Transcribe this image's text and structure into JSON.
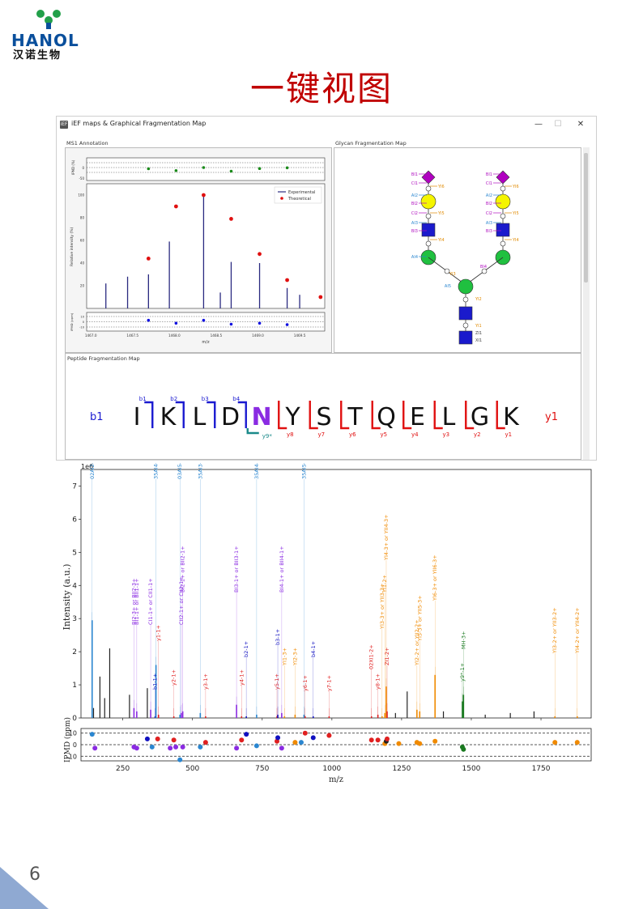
{
  "logo": {
    "text": "HANOL",
    "cn": "汉诺生物"
  },
  "page_title": "一键视图",
  "page_number": "6",
  "window": {
    "title": "iEF maps & Graphical Fragmentation Map",
    "app_icon_label": "iEF",
    "min_label": "—",
    "max_label": "☐",
    "close_label": "✕",
    "panels": {
      "ms1": "MS1 Annotation",
      "glycan": "Glycan Fragmentation Map",
      "peptide": "Peptide Fragmentation Map"
    }
  },
  "ms1_chart": {
    "type": "bar",
    "ylabel": "Relative intensity (%)",
    "top_ylabel": "IPMD (%)",
    "bottom_ylabel": "IPMD (ppm)",
    "xlabel": "m/z",
    "legend": [
      "Experimental",
      "Theoretical"
    ],
    "xlim": [
      1466.95,
      1469.8
    ],
    "xticks": [
      "1467.0",
      "1467.5",
      "1468.0",
      "1468.5",
      "1469.0",
      "1469.5"
    ],
    "yticks": [
      "20",
      "40",
      "60",
      "80",
      "100"
    ],
    "top_yticks": [
      "0",
      "-50"
    ],
    "bottom_yticks": [
      "10",
      "0",
      "-10"
    ],
    "experimental": [
      [
        1467.18,
        22
      ],
      [
        1467.44,
        28
      ],
      [
        1467.69,
        30
      ],
      [
        1467.94,
        59
      ],
      [
        1468.35,
        100
      ],
      [
        1468.55,
        14
      ],
      [
        1468.68,
        41
      ],
      [
        1469.02,
        40
      ],
      [
        1469.35,
        18
      ],
      [
        1469.5,
        12
      ]
    ],
    "theoretical": [
      [
        1467.69,
        44
      ],
      [
        1468.02,
        90
      ],
      [
        1468.35,
        100
      ],
      [
        1468.68,
        79
      ],
      [
        1469.02,
        48
      ],
      [
        1469.35,
        25
      ],
      [
        1469.75,
        10
      ]
    ],
    "ipmd_pct": [
      [
        1467.69,
        -10
      ],
      [
        1468.02,
        -25
      ],
      [
        1468.35,
        0
      ],
      [
        1468.68,
        -30
      ],
      [
        1469.02,
        -8
      ],
      [
        1469.35,
        -2
      ]
    ],
    "ipmd_ppm": [
      [
        1467.69,
        3
      ],
      [
        1468.02,
        -3
      ],
      [
        1468.35,
        3
      ],
      [
        1468.68,
        -5
      ],
      [
        1469.02,
        -3
      ],
      [
        1469.35,
        -6
      ]
    ]
  },
  "glycan": {
    "left_branch": [
      "BI1",
      "CI1",
      "AI2",
      "BI2",
      "CI2",
      "AI3",
      "BI3",
      "AI4"
    ],
    "left_y": [
      "YI6",
      "YI5",
      "YI4"
    ],
    "right_branch": [
      "BI1",
      "CI1",
      "AI2",
      "BI2",
      "CI2",
      "AI3",
      "BI3"
    ],
    "right_y": [
      "YI6",
      "YI5",
      "YI4"
    ],
    "core_labels": [
      "AI5",
      "BI4",
      "YI3",
      "YI2",
      "YI1",
      "ZI1",
      "XI1"
    ]
  },
  "peptide": {
    "sequence": [
      "I",
      "K",
      "L",
      "D",
      "N",
      "Y",
      "S",
      "T",
      "Q",
      "E",
      "L",
      "G",
      "K"
    ],
    "glyco_site_index": 4,
    "b_label": "b1",
    "y_label": "y1",
    "b_ions": [
      "b1",
      "b2",
      "b3",
      "b4"
    ],
    "y_ions": [
      "y8",
      "y7",
      "y6",
      "y5",
      "y4",
      "y3",
      "y2",
      "y1"
    ],
    "y9_label": "y9*"
  },
  "chart_data": {
    "type": "bar",
    "title": "",
    "xlabel": "m/z",
    "ylabel": "Intensity (a.u.)",
    "exponent_label": "1e6",
    "xlim": [
      100,
      1930
    ],
    "ylim": [
      0,
      7.5
    ],
    "xticks": [
      250,
      500,
      750,
      1000,
      1250,
      1500,
      1750
    ],
    "yticks": [
      0,
      1,
      2,
      3,
      4,
      5,
      6,
      7
    ],
    "ipmd": {
      "ylabel": "IPMD (ppm)",
      "yticks": [
        10,
        0,
        -10
      ],
      "ylim": [
        -14,
        14
      ]
    },
    "colors": {
      "blue": "#2a86d0",
      "purple": "#8a2be2",
      "red": "#e02020",
      "orange": "#f08a00",
      "green": "#1a7a20",
      "navy": "#1010c0",
      "black": "#222222"
    },
    "peaks": [
      {
        "x": 140,
        "y": 2.95,
        "color": "blue",
        "label": "02AI2-3+ or 02AI2-3+"
      },
      {
        "x": 145,
        "y": 0.3,
        "color": "black"
      },
      {
        "x": 168,
        "y": 1.25,
        "color": "black"
      },
      {
        "x": 185,
        "y": 0.6,
        "color": "black"
      },
      {
        "x": 203,
        "y": 2.1,
        "color": "black"
      },
      {
        "x": 274,
        "y": 0.7,
        "color": "black"
      },
      {
        "x": 290,
        "y": 0.3,
        "color": "purple",
        "label": "BI2-3+ or BII2-3+"
      },
      {
        "x": 300,
        "y": 0.2,
        "color": "purple",
        "label": "BI1-1+ or BII1-1+"
      },
      {
        "x": 338,
        "y": 0.9,
        "color": "black"
      },
      {
        "x": 350,
        "y": 0.25,
        "color": "purple",
        "label": "CI1-1+ or CII1-1+"
      },
      {
        "x": 366,
        "y": 0.05,
        "color": "navy",
        "label": "b1-1+"
      },
      {
        "x": 369,
        "y": 1.6,
        "color": "blue",
        "label": "35AI4-2+ or 35AI4-2+"
      },
      {
        "x": 378,
        "y": 0.1,
        "color": "red",
        "label": "y1-1+"
      },
      {
        "x": 433,
        "y": 0.05,
        "color": "red",
        "label": "y2-1+"
      },
      {
        "x": 455,
        "y": 0.1,
        "color": "blue",
        "label": "03AI5-2+"
      },
      {
        "x": 460,
        "y": 0.15,
        "color": "purple",
        "label": "CII2-1+ or CII2-1+"
      },
      {
        "x": 465,
        "y": 0.2,
        "color": "purple",
        "label": "BI2-1+ or BII2-1+"
      },
      {
        "x": 528,
        "y": 0.15,
        "color": "blue",
        "label": "35AI3-1+ or 35AI3-1+"
      },
      {
        "x": 547,
        "y": 0.05,
        "color": "red",
        "label": "y3-1+"
      },
      {
        "x": 658,
        "y": 0.4,
        "color": "purple",
        "label": "BI3-1+ or BII3-1+"
      },
      {
        "x": 676,
        "y": 0.05,
        "color": "red",
        "label": "y4-1+"
      },
      {
        "x": 693,
        "y": 0.05,
        "color": "navy",
        "label": "b2-1+"
      },
      {
        "x": 730,
        "y": 0.1,
        "color": "blue",
        "label": "35AI4-1+ or 35AI4-1+"
      },
      {
        "x": 803,
        "y": 0.05,
        "color": "red",
        "label": "y5-1+"
      },
      {
        "x": 806,
        "y": 0.1,
        "color": "navy",
        "label": "b3-1+"
      },
      {
        "x": 820,
        "y": 0.15,
        "color": "purple",
        "label": "BI4-1+ or BII4-1+"
      },
      {
        "x": 830,
        "y": 0.05,
        "color": "orange",
        "label": "YI1-3+"
      },
      {
        "x": 868,
        "y": 0.1,
        "color": "orange",
        "label": "YI2-3+"
      },
      {
        "x": 900,
        "y": 0.1,
        "color": "blue",
        "label": "35AI5-1+"
      },
      {
        "x": 904,
        "y": 0.05,
        "color": "red",
        "label": "y6-1+"
      },
      {
        "x": 933,
        "y": 0.05,
        "color": "navy",
        "label": "b4-1+"
      },
      {
        "x": 990,
        "y": 0.05,
        "color": "red",
        "label": "y7-1+"
      },
      {
        "x": 1142,
        "y": 0.05,
        "color": "red",
        "label": "02XI1-2+"
      },
      {
        "x": 1165,
        "y": 0.1,
        "color": "red",
        "label": "y8-1+"
      },
      {
        "x": 1180,
        "y": 0.05,
        "color": "orange",
        "label": "YI3-3+ or YII3-3+"
      },
      {
        "x": 1190,
        "y": 0.15,
        "color": "orange",
        "label": "YI1-2+"
      },
      {
        "x": 1195,
        "y": 0.95,
        "color": "orange",
        "label": "YI4-3+ or YII4-3+"
      },
      {
        "x": 1198,
        "y": 0.2,
        "color": "red",
        "label": "ZI1-2+"
      },
      {
        "x": 1228,
        "y": 0.15,
        "color": "black"
      },
      {
        "x": 1270,
        "y": 0.8,
        "color": "black"
      },
      {
        "x": 1305,
        "y": 0.25,
        "color": "orange",
        "label": "YI2-2+ or YII2-2+"
      },
      {
        "x": 1315,
        "y": 0.2,
        "color": "orange",
        "label": "YI5-3+ or YII5-3+"
      },
      {
        "x": 1370,
        "y": 1.3,
        "color": "orange",
        "label": "YI6-3+ or YII6-3+"
      },
      {
        "x": 1400,
        "y": 0.2,
        "color": "black"
      },
      {
        "x": 1468,
        "y": 0.5,
        "color": "green",
        "label": "y9*-1+"
      },
      {
        "x": 1472,
        "y": 0.7,
        "color": "green",
        "label": "MH-3+"
      },
      {
        "x": 1550,
        "y": 0.1,
        "color": "black"
      },
      {
        "x": 1640,
        "y": 0.15,
        "color": "black"
      },
      {
        "x": 1725,
        "y": 0.2,
        "color": "black"
      },
      {
        "x": 1800,
        "y": 0.05,
        "color": "orange",
        "label": "YI3-2+ or YII3-2+"
      },
      {
        "x": 1880,
        "y": 0.05,
        "color": "orange",
        "label": "YI4-2+ or YII4-2+"
      }
    ],
    "ipmd_points": [
      {
        "x": 140,
        "y": 9,
        "color": "blue"
      },
      {
        "x": 150,
        "y": -3,
        "color": "purple"
      },
      {
        "x": 290,
        "y": -2,
        "color": "purple"
      },
      {
        "x": 300,
        "y": -3,
        "color": "purple"
      },
      {
        "x": 338,
        "y": 5,
        "color": "navy"
      },
      {
        "x": 355,
        "y": -2,
        "color": "blue"
      },
      {
        "x": 375,
        "y": 5,
        "color": "red"
      },
      {
        "x": 420,
        "y": -3,
        "color": "purple"
      },
      {
        "x": 433,
        "y": 4,
        "color": "red"
      },
      {
        "x": 440,
        "y": -2,
        "color": "purple"
      },
      {
        "x": 455,
        "y": -13,
        "color": "blue"
      },
      {
        "x": 465,
        "y": -2,
        "color": "purple"
      },
      {
        "x": 528,
        "y": -2,
        "color": "blue"
      },
      {
        "x": 547,
        "y": 2,
        "color": "red"
      },
      {
        "x": 658,
        "y": -3,
        "color": "purple"
      },
      {
        "x": 676,
        "y": 4,
        "color": "red"
      },
      {
        "x": 693,
        "y": 9,
        "color": "navy"
      },
      {
        "x": 730,
        "y": -1,
        "color": "blue"
      },
      {
        "x": 803,
        "y": 3,
        "color": "red"
      },
      {
        "x": 806,
        "y": 6,
        "color": "navy"
      },
      {
        "x": 820,
        "y": -3,
        "color": "purple"
      },
      {
        "x": 868,
        "y": 2,
        "color": "orange"
      },
      {
        "x": 890,
        "y": 2,
        "color": "blue"
      },
      {
        "x": 904,
        "y": 10,
        "color": "red"
      },
      {
        "x": 933,
        "y": 6,
        "color": "navy"
      },
      {
        "x": 990,
        "y": 8,
        "color": "red"
      },
      {
        "x": 1142,
        "y": 4,
        "color": "red"
      },
      {
        "x": 1165,
        "y": 4,
        "color": "red"
      },
      {
        "x": 1190,
        "y": 1,
        "color": "orange"
      },
      {
        "x": 1195,
        "y": 3,
        "color": "black"
      },
      {
        "x": 1198,
        "y": 5,
        "color": "red"
      },
      {
        "x": 1240,
        "y": 1,
        "color": "orange"
      },
      {
        "x": 1305,
        "y": 2,
        "color": "orange"
      },
      {
        "x": 1315,
        "y": 1,
        "color": "orange"
      },
      {
        "x": 1370,
        "y": 3,
        "color": "orange"
      },
      {
        "x": 1468,
        "y": -2,
        "color": "green"
      },
      {
        "x": 1472,
        "y": -4,
        "color": "green"
      },
      {
        "x": 1800,
        "y": 2,
        "color": "orange"
      },
      {
        "x": 1880,
        "y": 2,
        "color": "orange"
      }
    ]
  }
}
